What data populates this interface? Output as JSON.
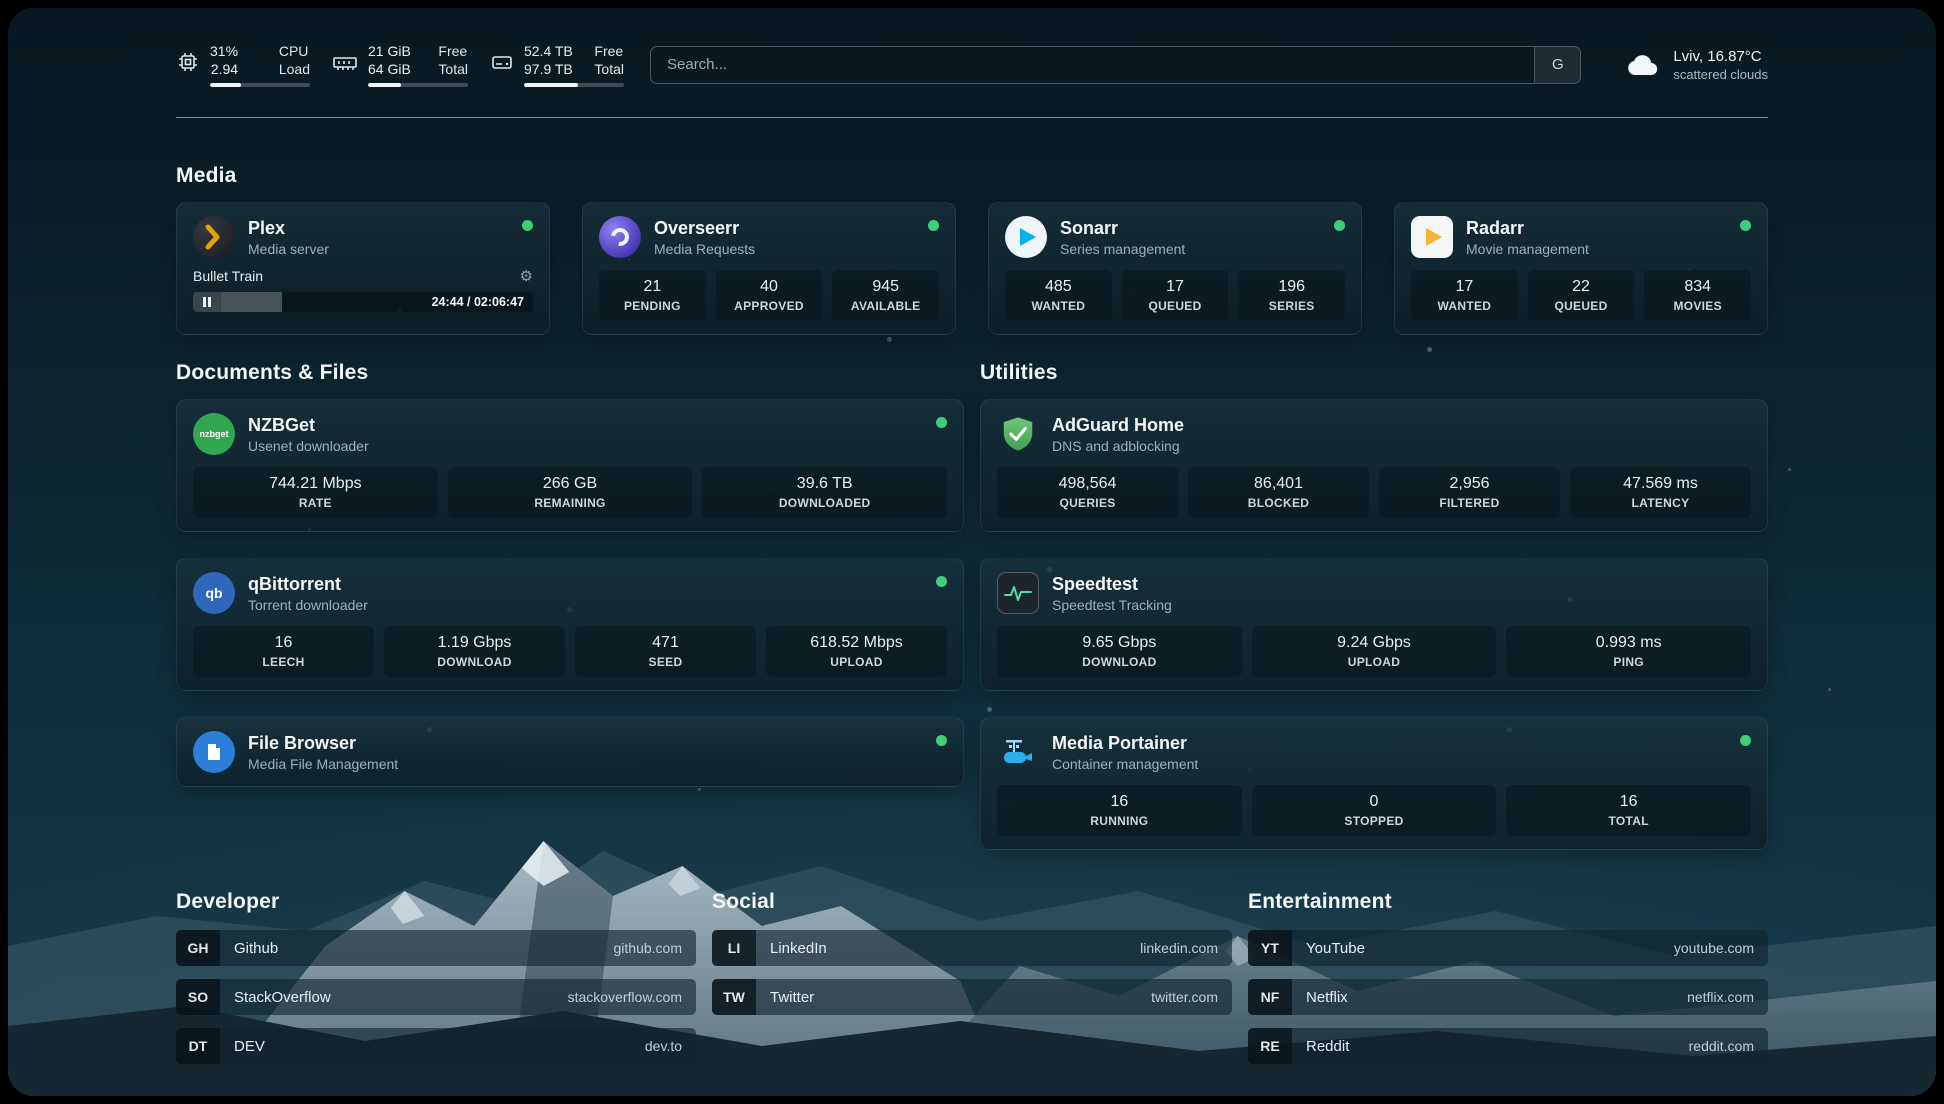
{
  "header": {
    "cpu": {
      "value_top": "31%",
      "value_bottom": "2.94",
      "label_top": "CPU",
      "label_bottom": "Load",
      "bar": 31
    },
    "memory": {
      "value_top": "21 GiB",
      "value_bottom": "64 GiB",
      "label_top": "Free",
      "label_bottom": "Total",
      "bar": 33
    },
    "disk": {
      "value_top": "52.4 TB",
      "value_bottom": "97.9 TB",
      "label_top": "Free",
      "label_bottom": "Total",
      "bar": 54
    },
    "search": {
      "placeholder": "Search...",
      "button": "G"
    },
    "weather": {
      "location": "Lviv, 16.87°C",
      "condition": "scattered clouds"
    }
  },
  "media": {
    "title": "Media",
    "plex": {
      "name": "Plex",
      "subtitle": "Media server",
      "now_playing": {
        "title": "Bullet Train",
        "time": "24:44 / 02:06:47",
        "progress": 19.5
      }
    },
    "overseerr": {
      "name": "Overseerr",
      "subtitle": "Media Requests",
      "stats": [
        {
          "value": "21",
          "label": "PENDING"
        },
        {
          "value": "40",
          "label": "APPROVED"
        },
        {
          "value": "945",
          "label": "AVAILABLE"
        }
      ]
    },
    "sonarr": {
      "name": "Sonarr",
      "subtitle": "Series management",
      "stats": [
        {
          "value": "485",
          "label": "WANTED"
        },
        {
          "value": "17",
          "label": "QUEUED"
        },
        {
          "value": "196",
          "label": "SERIES"
        }
      ]
    },
    "radarr": {
      "name": "Radarr",
      "subtitle": "Movie management",
      "stats": [
        {
          "value": "17",
          "label": "WANTED"
        },
        {
          "value": "22",
          "label": "QUEUED"
        },
        {
          "value": "834",
          "label": "MOVIES"
        }
      ]
    }
  },
  "documents": {
    "title": "Documents & Files",
    "nzbget": {
      "name": "NZBGet",
      "subtitle": "Usenet downloader",
      "icon_text": "nzbget",
      "stats": [
        {
          "value": "744.21 Mbps",
          "label": "RATE"
        },
        {
          "value": "266 GB",
          "label": "REMAINING"
        },
        {
          "value": "39.6 TB",
          "label": "DOWNLOADED"
        }
      ]
    },
    "qbittorrent": {
      "name": "qBittorrent",
      "subtitle": "Torrent downloader",
      "icon_text": "qb",
      "stats": [
        {
          "value": "16",
          "label": "LEECH"
        },
        {
          "value": "1.19 Gbps",
          "label": "DOWNLOAD"
        },
        {
          "value": "471",
          "label": "SEED"
        },
        {
          "value": "618.52 Mbps",
          "label": "UPLOAD"
        }
      ]
    },
    "filebrowser": {
      "name": "File Browser",
      "subtitle": "Media File Management"
    }
  },
  "utilities": {
    "title": "Utilities",
    "adguard": {
      "name": "AdGuard Home",
      "subtitle": "DNS and adblocking",
      "stats": [
        {
          "value": "498,564",
          "label": "QUERIES"
        },
        {
          "value": "86,401",
          "label": "BLOCKED"
        },
        {
          "value": "2,956",
          "label": "FILTERED"
        },
        {
          "value": "47.569 ms",
          "label": "LATENCY"
        }
      ]
    },
    "speedtest": {
      "name": "Speedtest",
      "subtitle": "Speedtest Tracking",
      "stats": [
        {
          "value": "9.65 Gbps",
          "label": "DOWNLOAD"
        },
        {
          "value": "9.24 Gbps",
          "label": "UPLOAD"
        },
        {
          "value": "0.993 ms",
          "label": "PING"
        }
      ]
    },
    "portainer": {
      "name": "Media Portainer",
      "subtitle": "Container management",
      "stats": [
        {
          "value": "16",
          "label": "RUNNING"
        },
        {
          "value": "0",
          "label": "STOPPED"
        },
        {
          "value": "16",
          "label": "TOTAL"
        }
      ]
    }
  },
  "bookmarks": [
    {
      "title": "Developer",
      "items": [
        {
          "abbr": "GH",
          "name": "Github",
          "host": "github.com"
        },
        {
          "abbr": "SO",
          "name": "StackOverflow",
          "host": "stackoverflow.com"
        },
        {
          "abbr": "DT",
          "name": "DEV",
          "host": "dev.to"
        }
      ]
    },
    {
      "title": "Social",
      "items": [
        {
          "abbr": "LI",
          "name": "LinkedIn",
          "host": "linkedin.com"
        },
        {
          "abbr": "TW",
          "name": "Twitter",
          "host": "twitter.com"
        }
      ]
    },
    {
      "title": "Entertainment",
      "items": [
        {
          "abbr": "YT",
          "name": "YouTube",
          "host": "youtube.com"
        },
        {
          "abbr": "NF",
          "name": "Netflix",
          "host": "netflix.com"
        },
        {
          "abbr": "RE",
          "name": "Reddit",
          "host": "reddit.com"
        }
      ]
    }
  ]
}
